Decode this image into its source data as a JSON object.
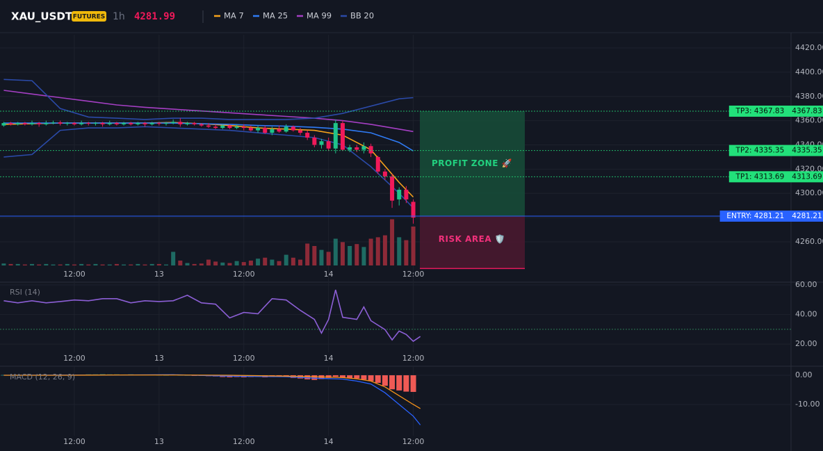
{
  "header": {
    "symbol": "XAU_USDT",
    "badge": "FUTURES",
    "interval": "1h",
    "price": 4281.99
  },
  "chart_data": [
    {
      "type": "candlestick",
      "x": [
        2,
        3,
        4,
        5,
        6,
        7,
        8,
        9,
        10,
        11,
        12,
        13,
        14,
        15,
        16,
        17,
        18,
        19,
        20,
        21,
        22,
        23,
        24,
        25,
        26,
        27,
        28,
        29,
        30,
        31,
        32,
        33,
        34,
        35,
        36,
        37,
        38,
        39,
        40,
        41,
        42,
        43,
        44,
        45,
        46,
        47,
        48,
        49,
        50,
        51,
        52,
        53,
        54,
        55,
        56,
        57,
        58,
        59,
        60
      ],
      "open": [
        4356,
        4358,
        4357,
        4358,
        4357,
        4358,
        4357,
        4358,
        4358.5,
        4357.5,
        4358,
        4357,
        4358,
        4357.5,
        4358,
        4357,
        4358,
        4357,
        4358,
        4357,
        4358,
        4357,
        4358,
        4357.5,
        4358,
        4359,
        4357,
        4358,
        4357,
        4356,
        4355,
        4354,
        4356,
        4354,
        4355,
        4354,
        4352,
        4354,
        4350,
        4353,
        4351,
        4355,
        4352,
        4350,
        4346,
        4340,
        4343,
        4337,
        4358,
        4336,
        4338,
        4336,
        4339,
        4330,
        4318,
        4314,
        4295,
        4303,
        4293
      ],
      "high": [
        4359,
        4359,
        4359,
        4359,
        4360,
        4359,
        4360,
        4360,
        4360,
        4359,
        4359,
        4360,
        4359,
        4359,
        4359,
        4360,
        4359,
        4359,
        4359,
        4359,
        4359,
        4359,
        4359,
        4359,
        4361,
        4362,
        4359,
        4359,
        4358,
        4358,
        4357,
        4357,
        4357,
        4357,
        4357,
        4356,
        4356,
        4356,
        4355,
        4356,
        4357,
        4356,
        4354,
        4352,
        4348,
        4345,
        4346,
        4361,
        4360,
        4340,
        4340,
        4342,
        4341,
        4331,
        4320,
        4316,
        4305,
        4306,
        4295
      ],
      "low": [
        4355,
        4356,
        4356,
        4356,
        4356,
        4355,
        4356,
        4357,
        4356,
        4356,
        4356,
        4356,
        4356,
        4356,
        4355,
        4356,
        4356,
        4356,
        4356,
        4356,
        4355,
        4356,
        4356,
        4356,
        4357,
        4355,
        4356,
        4356,
        4355,
        4354,
        4353,
        4353,
        4353,
        4353,
        4352,
        4351,
        4350,
        4349,
        4348,
        4350,
        4350,
        4351,
        4348,
        4344,
        4338,
        4337,
        4335,
        4333,
        4335,
        4334,
        4334,
        4333,
        4330,
        4316,
        4311,
        4288,
        4290,
        4292,
        4275
      ],
      "close": [
        4358,
        4357,
        4358,
        4357,
        4358,
        4357,
        4358,
        4358.5,
        4357.5,
        4358,
        4357,
        4358,
        4357.5,
        4358,
        4357,
        4358,
        4357,
        4358,
        4357,
        4358,
        4357,
        4358,
        4357.5,
        4358,
        4359,
        4357,
        4358,
        4357,
        4356,
        4355,
        4354,
        4356,
        4354,
        4355,
        4354,
        4352,
        4354,
        4350,
        4353,
        4351,
        4355,
        4352,
        4350,
        4346,
        4340,
        4343,
        4337,
        4358,
        4336,
        4338,
        4336,
        4339,
        4333,
        4318,
        4314,
        4294,
        4303,
        4295,
        4280
      ],
      "volume": [
        4,
        3,
        3,
        2,
        3,
        2,
        3,
        2,
        2,
        3,
        2,
        3,
        2,
        3,
        2,
        2,
        3,
        2,
        2,
        3,
        2,
        3,
        3,
        2,
        28,
        10,
        5,
        3,
        4,
        12,
        8,
        6,
        5,
        9,
        7,
        10,
        14,
        16,
        12,
        9,
        22,
        16,
        12,
        45,
        40,
        32,
        28,
        55,
        48,
        40,
        44,
        38,
        55,
        58,
        62,
        95,
        58,
        52,
        80
      ],
      "up_color": "#1fc38a",
      "down_color": "#f0195a",
      "volume_up_color": "#1e6b63",
      "volume_down_color": "#8d2a38",
      "series": [
        {
          "name": "MA 7",
          "color": "#f7a21b",
          "x": [
            2,
            6,
            10,
            14,
            18,
            22,
            26,
            30,
            34,
            38,
            42,
            46,
            50,
            54,
            58,
            60
          ],
          "values": [
            4357,
            4357.5,
            4358,
            4358,
            4358,
            4358,
            4358.5,
            4357.5,
            4356,
            4354,
            4353,
            4352,
            4348,
            4336,
            4309,
            4297
          ]
        },
        {
          "name": "MA 25",
          "color": "#2f7bf5",
          "x": [
            2,
            6,
            10,
            14,
            18,
            22,
            26,
            30,
            34,
            38,
            42,
            46,
            50,
            54,
            58,
            60
          ],
          "values": [
            4358,
            4358,
            4358,
            4358,
            4358,
            4358,
            4358,
            4357.5,
            4357,
            4356,
            4355.5,
            4354.5,
            4353,
            4350,
            4342,
            4335
          ]
        },
        {
          "name": "MA 99",
          "color": "#a53fc4",
          "x": [
            2,
            6,
            10,
            14,
            18,
            22,
            26,
            30,
            34,
            38,
            42,
            46,
            50,
            54,
            58,
            60
          ],
          "values": [
            4385,
            4382,
            4379,
            4376,
            4373,
            4371,
            4369.5,
            4368,
            4366.5,
            4365,
            4363.5,
            4362,
            4360,
            4357,
            4353,
            4351
          ]
        },
        {
          "name": "BB 20",
          "color": "#2b4aa8",
          "x": [
            2,
            6,
            10,
            14,
            18,
            22,
            26,
            30,
            34,
            38,
            42,
            46,
            50,
            54,
            58,
            60
          ],
          "upper": [
            4394,
            4393,
            4370,
            4363,
            4362,
            4361,
            4362,
            4362,
            4361,
            4361,
            4361,
            4362,
            4366,
            4372,
            4378,
            4379
          ],
          "lower": [
            4330,
            4332,
            4352,
            4354,
            4354,
            4355,
            4354,
            4353,
            4352,
            4350,
            4348,
            4346,
            4340,
            4322,
            4300,
            4288
          ]
        }
      ],
      "xlim": [
        1.47,
        113.5
      ],
      "xticks": [
        {
          "value": 12,
          "label": "12:00"
        },
        {
          "value": 24,
          "label": "13"
        },
        {
          "value": 36,
          "label": "12:00"
        },
        {
          "value": 48,
          "label": "14"
        },
        {
          "value": 60,
          "label": "12:00"
        }
      ],
      "ylim": [
        4227.3,
        4430.9
      ],
      "yticks": [
        {
          "value": 4260,
          "label": "4260.00"
        },
        {
          "value": 4280,
          "label": "4280.00"
        },
        {
          "value": 4300,
          "label": "4300.00"
        },
        {
          "value": 4320,
          "label": "4320.00"
        },
        {
          "value": 4340,
          "label": "4340.00"
        },
        {
          "value": 4360,
          "label": "4360.00"
        },
        {
          "value": 4380,
          "label": "4380.00"
        },
        {
          "value": 4400,
          "label": "4400.00"
        },
        {
          "value": 4420,
          "label": "4420.00"
        }
      ],
      "zones": [
        {
          "label": "PROFIT ZONE 🚀",
          "from": 4367.83,
          "to": 4281.21,
          "color": "#174a37",
          "text_color": "#22d17f"
        },
        {
          "label": "RISK AREA 🛡️",
          "from": 4281.21,
          "to": 4238,
          "color": "#48192f",
          "text_color": "#f0307a",
          "edge_color": "#e6195c"
        }
      ],
      "levels": [
        {
          "label": "TP3: 4367.83",
          "value": 4367.83,
          "color": "#22e07a",
          "text_color": "#06140c",
          "dashed": true
        },
        {
          "label": "TP2: 4335.35",
          "value": 4335.35,
          "color": "#22e07a",
          "text_color": "#06140c",
          "dashed": true
        },
        {
          "label": "TP1: 4313.69",
          "value": 4313.69,
          "color": "#22e07a",
          "text_color": "#06140c",
          "dashed": true
        },
        {
          "label": "ENTRY: 4281.21",
          "value": 4281.21,
          "color": "#2962ff",
          "text_color": "#ffffff",
          "dashed": false
        }
      ]
    },
    {
      "type": "line",
      "title": "RSI (14)",
      "x": [
        2,
        4,
        6,
        8,
        10,
        12,
        14,
        16,
        18,
        20,
        22,
        24,
        26,
        28,
        30,
        32,
        34,
        36,
        38,
        40,
        42,
        44,
        46,
        47,
        48,
        49,
        50,
        52,
        53,
        54,
        56,
        57,
        58,
        59,
        60,
        61
      ],
      "values": [
        49.3,
        47.9,
        49.3,
        47.9,
        48.8,
        49.8,
        49.3,
        50.7,
        50.7,
        47.9,
        49.3,
        48.8,
        49.3,
        53,
        47.9,
        47,
        37.7,
        41.4,
        40.5,
        50.7,
        49.8,
        42.8,
        36.7,
        27.4,
        36.7,
        56.7,
        38.1,
        36.7,
        45.1,
        35.8,
        29.8,
        22.8,
        28.8,
        26.5,
        21.9,
        25.1
      ],
      "color": "#8c5fd6",
      "guide_line": 30,
      "guide_color": "#2c7a55",
      "xlim": [
        1.47,
        113.5
      ],
      "xticks": [
        {
          "value": 12,
          "label": "12:00"
        },
        {
          "value": 24,
          "label": "13"
        },
        {
          "value": 36,
          "label": "12:00"
        },
        {
          "value": 48,
          "label": "14"
        },
        {
          "value": 60,
          "label": "12:00"
        }
      ],
      "ylim": [
        14.4,
        61.9
      ],
      "yticks": [
        {
          "value": 20,
          "label": "20.00"
        },
        {
          "value": 40,
          "label": "40.00"
        },
        {
          "value": 60,
          "label": "60.00"
        }
      ]
    },
    {
      "type": "macd",
      "title": "MACD (12, 26, 9)",
      "bars_x": [
        2,
        3,
        4,
        5,
        6,
        7,
        8,
        9,
        10,
        11,
        12,
        13,
        14,
        15,
        16,
        17,
        18,
        19,
        20,
        21,
        22,
        23,
        24,
        25,
        26,
        27,
        28,
        29,
        30,
        31,
        32,
        33,
        34,
        35,
        36,
        37,
        38,
        39,
        40,
        41,
        42,
        43,
        44,
        45,
        46,
        47,
        48,
        49,
        50,
        51,
        52,
        53,
        54,
        55,
        56,
        57,
        58,
        59,
        60
      ],
      "bars": [
        0.1,
        0.1,
        0.05,
        0.1,
        0.1,
        0.05,
        0.1,
        0.1,
        0.1,
        0.15,
        0.2,
        0.2,
        0.3,
        0.3,
        0.35,
        0.3,
        0.3,
        0.25,
        0.3,
        0.25,
        0.2,
        0.2,
        0.15,
        0.1,
        0.2,
        0.1,
        0.05,
        -0.1,
        -0.2,
        -0.3,
        -0.4,
        -0.6,
        -0.7,
        -0.6,
        -0.7,
        -0.6,
        -0.5,
        -0.7,
        -0.6,
        -0.5,
        -0.6,
        -0.9,
        -1.1,
        -1.4,
        -1.6,
        -1.3,
        -0.9,
        -0.5,
        -0.8,
        -1.0,
        -1.1,
        -1.5,
        -2.0,
        -2.6,
        -3.6,
        -4.8,
        -5.2,
        -5.6,
        -5.7
      ],
      "bar_up_color": "#2a8f86",
      "bar_down_color": "#ef5a55",
      "series": [
        {
          "color": "#2962ff",
          "x": [
            2,
            10,
            18,
            26,
            34,
            42,
            46,
            50,
            52,
            54,
            56,
            58,
            60,
            61
          ],
          "values": [
            0,
            0.1,
            0.1,
            0.2,
            -0.3,
            -0.5,
            -1,
            -1.3,
            -2,
            -3,
            -6,
            -10,
            -14,
            -17
          ]
        },
        {
          "color": "#f7931a",
          "x": [
            2,
            10,
            18,
            26,
            34,
            42,
            46,
            50,
            52,
            54,
            56,
            58,
            60,
            61
          ],
          "values": [
            0,
            0,
            0.1,
            0.1,
            0,
            -0.3,
            -0.5,
            -0.8,
            -1.2,
            -2,
            -4,
            -7,
            -10,
            -11.4
          ]
        }
      ],
      "xlim": [
        1.47,
        113.5
      ],
      "xticks": [
        {
          "value": 12,
          "label": "12:00"
        },
        {
          "value": 24,
          "label": "13"
        },
        {
          "value": 36,
          "label": "12:00"
        },
        {
          "value": 48,
          "label": "14"
        },
        {
          "value": 60,
          "label": "12:00"
        }
      ],
      "ylim": [
        -20.7,
        2.86
      ],
      "yticks": [
        {
          "value": -10,
          "label": "-10.00"
        },
        {
          "value": 0,
          "label": "0.00"
        }
      ]
    }
  ]
}
